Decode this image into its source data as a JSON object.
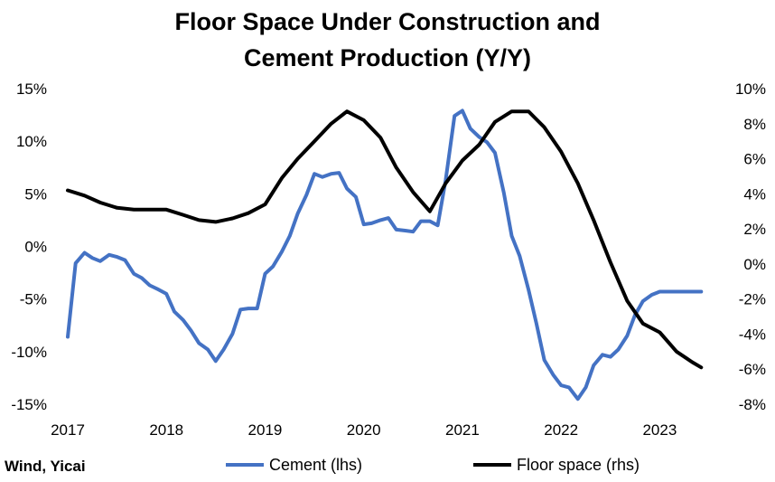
{
  "chart_data": {
    "type": "line",
    "title_lines": [
      "Floor Space Under Construction and",
      "Cement Production (Y/Y)"
    ],
    "source": "Wind, Yicai",
    "x_ticks": [
      "2017",
      "2018",
      "2019",
      "2020",
      "2021",
      "2022",
      "2023"
    ],
    "y_left": {
      "ticks": [
        "15%",
        "10%",
        "5%",
        "0%",
        "-5%",
        "-10%",
        "-15%"
      ],
      "range": [
        -15,
        15
      ]
    },
    "y_right": {
      "ticks": [
        "10%",
        "8%",
        "6%",
        "4%",
        "2%",
        "0%",
        "-2%",
        "-4%",
        "-6%",
        "-8%"
      ],
      "range": [
        -8,
        10
      ]
    },
    "grid": false,
    "legend_position": "bottom",
    "colors": {
      "cement": "#4472c4",
      "floor": "#000000"
    },
    "series": [
      {
        "name": "Cement (lhs)",
        "axis": "left",
        "x": [
          2017.0,
          2017.08,
          2017.17,
          2017.25,
          2017.33,
          2017.42,
          2017.5,
          2017.58,
          2017.67,
          2017.75,
          2017.83,
          2017.92,
          2018.0,
          2018.08,
          2018.17,
          2018.25,
          2018.33,
          2018.42,
          2018.5,
          2018.58,
          2018.67,
          2018.75,
          2018.83,
          2018.92,
          2019.0,
          2019.08,
          2019.17,
          2019.25,
          2019.33,
          2019.42,
          2019.5,
          2019.58,
          2019.67,
          2019.75,
          2019.83,
          2019.92,
          2020.0,
          2020.08,
          2020.17,
          2020.25,
          2020.33,
          2020.42,
          2020.5,
          2020.58,
          2020.67,
          2020.75,
          2020.83,
          2020.92,
          2021.0,
          2021.08,
          2021.17,
          2021.25,
          2021.33,
          2021.42,
          2021.5,
          2021.58,
          2021.67,
          2021.75,
          2021.83,
          2021.92,
          2022.0,
          2022.08,
          2022.17,
          2022.25,
          2022.33,
          2022.42,
          2022.5,
          2022.58,
          2022.67,
          2022.75,
          2022.83,
          2022.92,
          2023.0,
          2023.08,
          2023.17,
          2023.25,
          2023.33,
          2023.42
        ],
        "values": [
          -8.6,
          -1.6,
          -0.6,
          -1.1,
          -1.4,
          -0.8,
          -1.0,
          -1.3,
          -2.6,
          -3.0,
          -3.7,
          -4.1,
          -4.5,
          -6.2,
          -7.0,
          -8.0,
          -9.2,
          -9.8,
          -10.9,
          -9.8,
          -8.3,
          -6.0,
          -5.9,
          -5.9,
          -2.6,
          -1.9,
          -0.5,
          1.0,
          3.1,
          4.9,
          6.9,
          6.6,
          6.9,
          7.0,
          5.5,
          4.7,
          2.1,
          2.2,
          2.5,
          2.7,
          1.6,
          1.5,
          1.4,
          2.4,
          2.4,
          2.0,
          6.3,
          12.4,
          12.9,
          11.2,
          10.4,
          9.9,
          8.9,
          5.1,
          1.0,
          -0.9,
          -4.1,
          -7.3,
          -10.8,
          -12.2,
          -13.2,
          -13.4,
          -14.5,
          -13.4,
          -11.3,
          -10.3,
          -10.5,
          -9.8,
          -8.5,
          -6.5,
          -5.2,
          -4.6,
          -4.3,
          -4.3,
          -4.3,
          -4.3,
          -4.3,
          -4.3
        ]
      },
      {
        "name": "Floor space (rhs)",
        "axis": "right",
        "x": [
          2017.0,
          2017.17,
          2017.33,
          2017.5,
          2017.67,
          2017.83,
          2018.0,
          2018.17,
          2018.33,
          2018.5,
          2018.67,
          2018.83,
          2019.0,
          2019.17,
          2019.33,
          2019.5,
          2019.67,
          2019.83,
          2020.0,
          2020.17,
          2020.33,
          2020.5,
          2020.67,
          2020.83,
          2021.0,
          2021.17,
          2021.33,
          2021.5,
          2021.67,
          2021.83,
          2022.0,
          2022.17,
          2022.33,
          2022.5,
          2022.67,
          2022.83,
          2023.0,
          2023.17,
          2023.33,
          2023.42
        ],
        "values": [
          4.2,
          3.9,
          3.5,
          3.2,
          3.1,
          3.1,
          3.1,
          2.8,
          2.5,
          2.4,
          2.6,
          2.9,
          3.4,
          4.9,
          6.0,
          7.0,
          8.0,
          8.7,
          8.2,
          7.2,
          5.5,
          4.1,
          3.0,
          4.6,
          5.9,
          6.8,
          8.1,
          8.7,
          8.7,
          7.8,
          6.4,
          4.6,
          2.5,
          0.1,
          -2.1,
          -3.4,
          -3.9,
          -5.0,
          -5.6,
          -5.9
        ]
      }
    ]
  }
}
